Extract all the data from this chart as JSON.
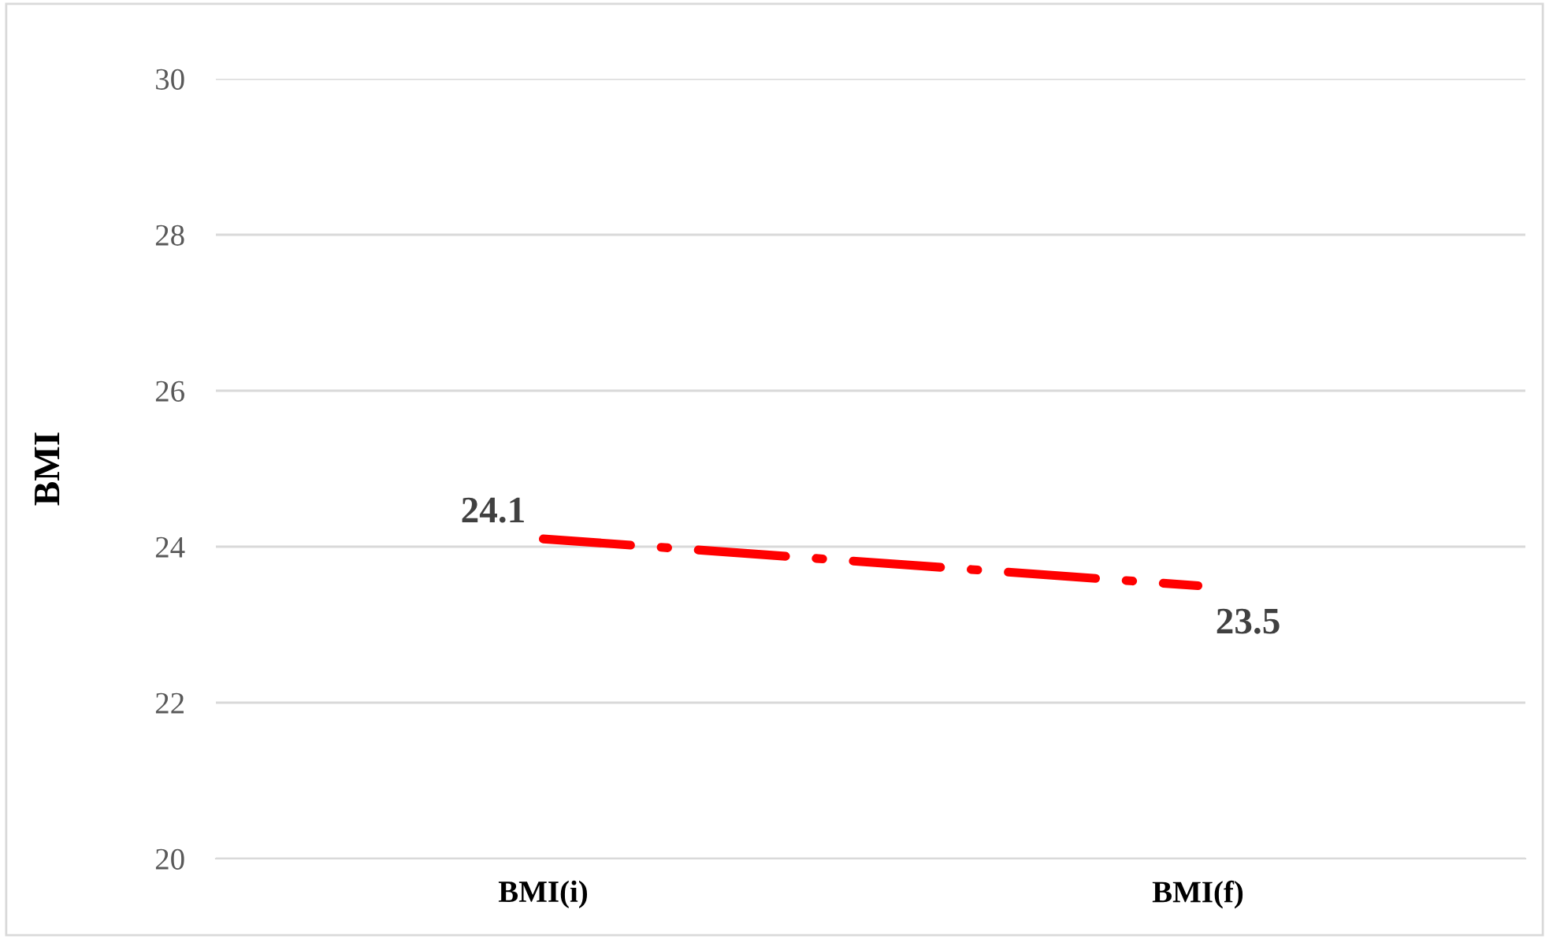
{
  "chart_data": {
    "type": "line",
    "ylabel": "BMI",
    "categories": [
      "BMI(i)",
      "BMI(f)"
    ],
    "series": [
      {
        "color": "#ff0000",
        "values": [
          24.1,
          23.5
        ]
      }
    ],
    "ylim": [
      20,
      30
    ],
    "yticks": [
      20,
      22,
      24,
      26,
      28,
      30
    ],
    "grid": "y",
    "data_labels": true,
    "line_style": "dashed",
    "marker": "none",
    "legend": false
  }
}
